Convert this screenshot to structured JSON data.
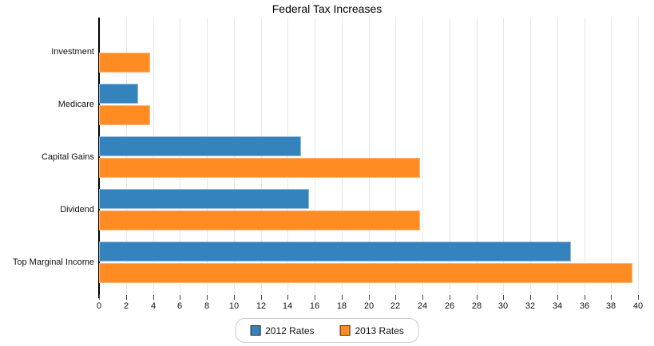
{
  "title": "Federal Tax Increases",
  "chart_data": {
    "type": "bar",
    "orientation": "horizontal",
    "title": "Federal Tax Increases",
    "categories": [
      "Investment",
      "Medicare",
      "Capital Gains",
      "Dividend",
      "Top Marginal Income"
    ],
    "series": [
      {
        "name": "2012 Rates",
        "color": "#3583bc",
        "values": [
          0,
          2.9,
          15,
          15.6,
          35
        ]
      },
      {
        "name": "2013 Rates",
        "color": "#ff8c22",
        "values": [
          3.8,
          3.8,
          23.8,
          23.8,
          39.6
        ]
      }
    ],
    "xlim": [
      0,
      40
    ],
    "x_ticks": [
      0,
      2,
      4,
      6,
      8,
      10,
      12,
      14,
      16,
      18,
      20,
      22,
      24,
      26,
      28,
      30,
      32,
      34,
      36,
      38,
      40
    ],
    "grid": "vertical-only",
    "legend_position": "bottom-center",
    "colors": {
      "axis": "#000000",
      "gridline": "#e7e7e7",
      "tick": "#444444",
      "text": "#111111"
    }
  }
}
